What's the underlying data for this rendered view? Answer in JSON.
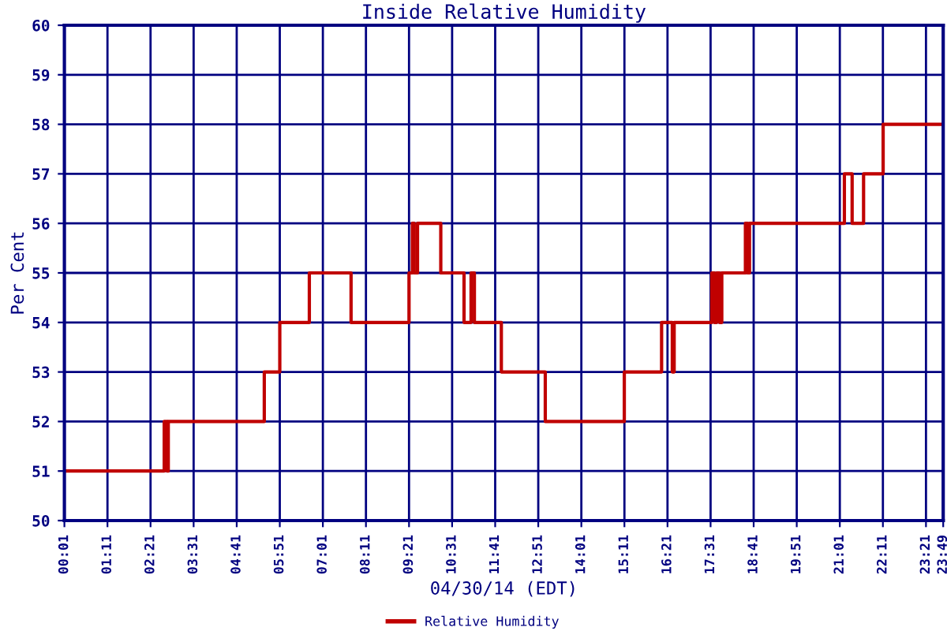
{
  "chart_data": {
    "type": "step",
    "title": "Inside Relative Humidity",
    "xlabel": "04/30/14 (EDT)",
    "ylabel": "Per Cent",
    "xlim": [
      0.0167,
      23.8167
    ],
    "ylim": [
      50,
      60
    ],
    "yticks": [
      50,
      51,
      52,
      53,
      54,
      55,
      56,
      57,
      58,
      59,
      60
    ],
    "xticks": [
      {
        "value": 0.0167,
        "label": "00:01"
      },
      {
        "value": 1.1833,
        "label": "01:11"
      },
      {
        "value": 2.35,
        "label": "02:21"
      },
      {
        "value": 3.5167,
        "label": "03:31"
      },
      {
        "value": 4.6833,
        "label": "04:41"
      },
      {
        "value": 5.85,
        "label": "05:51"
      },
      {
        "value": 7.0167,
        "label": "07:01"
      },
      {
        "value": 8.1833,
        "label": "08:11"
      },
      {
        "value": 9.35,
        "label": "09:21"
      },
      {
        "value": 10.5167,
        "label": "10:31"
      },
      {
        "value": 11.6833,
        "label": "11:41"
      },
      {
        "value": 12.85,
        "label": "12:51"
      },
      {
        "value": 14.0167,
        "label": "14:01"
      },
      {
        "value": 15.1833,
        "label": "15:11"
      },
      {
        "value": 16.35,
        "label": "16:21"
      },
      {
        "value": 17.5167,
        "label": "17:31"
      },
      {
        "value": 18.6833,
        "label": "18:41"
      },
      {
        "value": 19.85,
        "label": "19:51"
      },
      {
        "value": 21.0167,
        "label": "21:01"
      },
      {
        "value": 22.1833,
        "label": "22:11"
      },
      {
        "value": 23.35,
        "label": "23:21"
      },
      {
        "value": 23.8167,
        "label": "23:49"
      }
    ],
    "grid": true,
    "legend": "bottom",
    "line_style": "solid",
    "series": [
      {
        "name": "Relative Humidity",
        "color": "#c00000",
        "x": [
          0.0167,
          2.7,
          2.72,
          2.8,
          2.83,
          5.43,
          5.85,
          6.65,
          7.78,
          9.35,
          9.44,
          9.49,
          9.58,
          10.21,
          10.84,
          11.03,
          11.12,
          11.85,
          13.04,
          15.18,
          16.19,
          16.48,
          16.53,
          17.55,
          17.62,
          17.68,
          17.76,
          17.82,
          18.46,
          18.52,
          18.57,
          21.14,
          21.35,
          21.66,
          22.19,
          23.8167
        ],
        "values": [
          51,
          51,
          52,
          51,
          52,
          53,
          54,
          55,
          54,
          55,
          56,
          55,
          56,
          55,
          54,
          55,
          54,
          53,
          52,
          53,
          54,
          53,
          54,
          55,
          54,
          55,
          54,
          55,
          56,
          55,
          56,
          57,
          56,
          57,
          58,
          58
        ]
      }
    ]
  }
}
